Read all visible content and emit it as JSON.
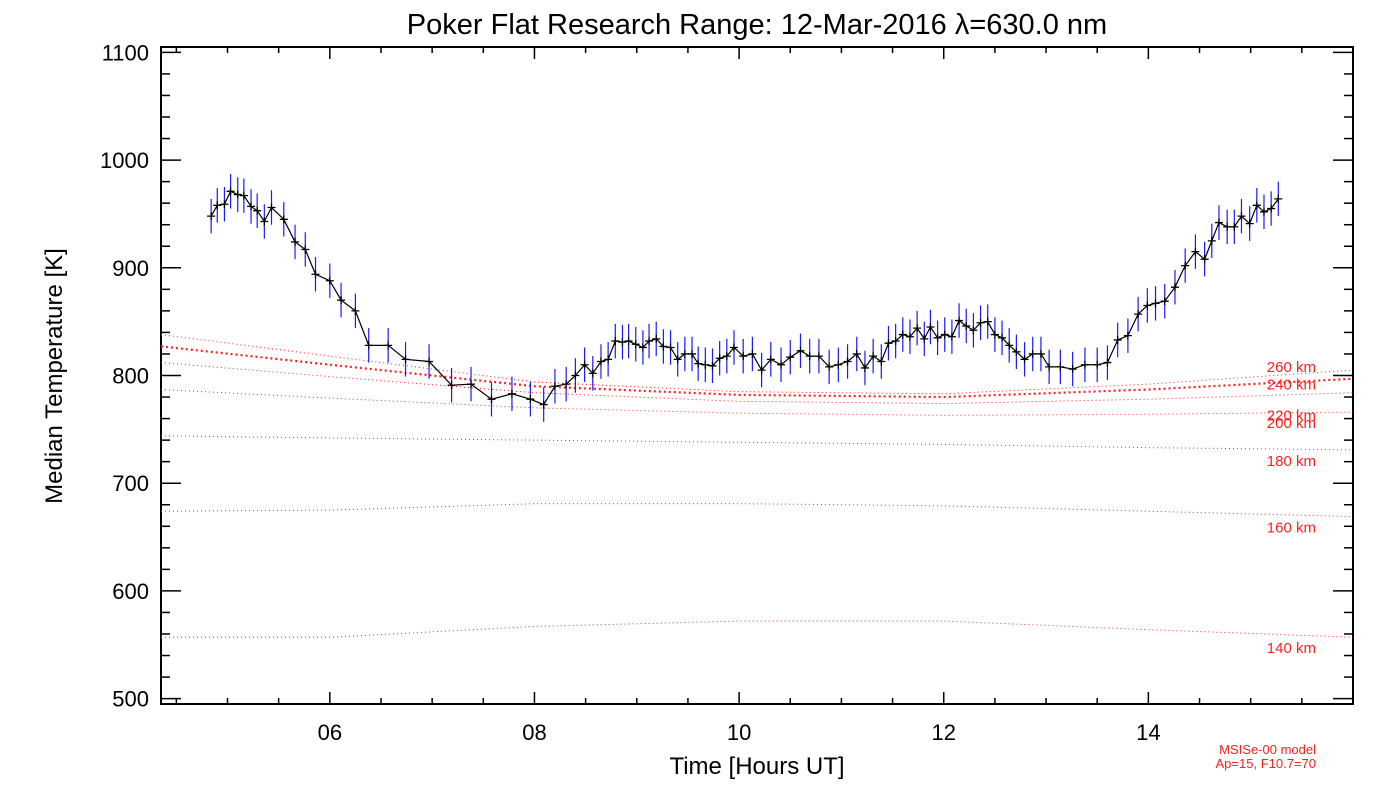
{
  "chart_data": {
    "type": "line",
    "title": "Poker Flat Research Range: 12-Mar-2016 λ=630.0 nm",
    "xlabel": "Time [Hours UT]",
    "ylabel": "Median Temperature [K]",
    "xlim": [
      4.35,
      16.0
    ],
    "ylim": [
      495,
      1105
    ],
    "xticks": [
      {
        "value": 6,
        "label": "06"
      },
      {
        "value": 8,
        "label": "08"
      },
      {
        "value": 10,
        "label": "10"
      },
      {
        "value": 12,
        "label": "12"
      },
      {
        "value": 14,
        "label": "14"
      }
    ],
    "yticks": [
      {
        "value": 500,
        "label": "500"
      },
      {
        "value": 600,
        "label": "600"
      },
      {
        "value": 700,
        "label": "700"
      },
      {
        "value": 800,
        "label": "800"
      },
      {
        "value": 900,
        "label": "900"
      },
      {
        "value": 1000,
        "label": "1000"
      },
      {
        "value": 1100,
        "label": "1100"
      }
    ],
    "grid": false,
    "colors": {
      "data_line": "#000000",
      "error_bars": "#1a1aff",
      "model": "#ff2020"
    },
    "series": [
      {
        "x": [
          4.84,
          4.9,
          4.97,
          5.03,
          5.1,
          5.16,
          5.23,
          5.29,
          5.36,
          5.43,
          5.55,
          5.66,
          5.76,
          5.86,
          6.0,
          6.11,
          6.25,
          6.38,
          6.57,
          6.74,
          6.97,
          7.19,
          7.38,
          7.58,
          7.78,
          7.96,
          8.09,
          8.2,
          8.31,
          8.4,
          8.49,
          8.57,
          8.65,
          8.72,
          8.79,
          8.86,
          8.92,
          8.99,
          9.06,
          9.12,
          9.19,
          9.26,
          9.33,
          9.4,
          9.47,
          9.54,
          9.6,
          9.67,
          9.74,
          9.81,
          9.88,
          9.95,
          10.04,
          10.13,
          10.22,
          10.31,
          10.41,
          10.5,
          10.6,
          10.69,
          10.78,
          10.88,
          10.97,
          11.06,
          11.15,
          11.23,
          11.31,
          11.39,
          11.46,
          11.53,
          11.6,
          11.67,
          11.74,
          11.81,
          11.87,
          11.94,
          12.01,
          12.08,
          12.15,
          12.22,
          12.29,
          12.36,
          12.43,
          12.5,
          12.57,
          12.64,
          12.71,
          12.79,
          12.87,
          12.95,
          13.03,
          13.14,
          13.26,
          13.38,
          13.5,
          13.6,
          13.7,
          13.8,
          13.9,
          13.99,
          14.07,
          14.16,
          14.26,
          14.36,
          14.46,
          14.55,
          14.62,
          14.69,
          14.77,
          14.84,
          14.91,
          14.99,
          15.06,
          15.13,
          15.2,
          15.27
        ],
        "values": [
          948,
          958,
          959,
          971,
          968,
          967,
          957,
          953,
          943,
          956,
          945,
          924,
          917,
          894,
          888,
          870,
          860,
          828,
          828,
          815,
          813,
          791,
          792,
          778,
          783,
          778,
          773,
          790,
          792,
          800,
          810,
          802,
          813,
          815,
          832,
          831,
          832,
          829,
          826,
          832,
          834,
          827,
          826,
          815,
          820,
          820,
          811,
          810,
          809,
          816,
          818,
          826,
          818,
          820,
          805,
          815,
          810,
          817,
          823,
          818,
          818,
          808,
          810,
          813,
          820,
          807,
          818,
          813,
          830,
          832,
          838,
          836,
          844,
          834,
          845,
          835,
          838,
          836,
          851,
          846,
          842,
          849,
          850,
          838,
          835,
          828,
          822,
          815,
          820,
          820,
          808,
          808,
          806,
          810,
          810,
          812,
          833,
          837,
          857,
          865,
          867,
          869,
          882,
          902,
          915,
          908,
          925,
          942,
          938,
          938,
          948,
          941,
          958,
          952,
          955,
          964
        ]
      }
    ],
    "model_curves": [
      {
        "label": "140 km",
        "x": [
          4.35,
          6.0,
          8.0,
          10.0,
          12.0,
          14.0,
          16.0
        ],
        "values": [
          557,
          557,
          567,
          572,
          572,
          564,
          557
        ]
      },
      {
        "label": "160 km",
        "x": [
          4.35,
          6.0,
          8.0,
          10.0,
          12.0,
          14.0,
          16.0
        ],
        "values": [
          674,
          675,
          681,
          681,
          679,
          674,
          669
        ]
      },
      {
        "label": "180 km",
        "x": [
          4.35,
          6.0,
          8.0,
          10.0,
          12.0,
          14.0,
          16.0
        ],
        "values": [
          744,
          742,
          740,
          738,
          736,
          733,
          731
        ]
      },
      {
        "label": "200 km",
        "x": [
          4.35,
          6.0,
          8.0,
          10.0,
          12.0,
          14.0,
          16.0
        ],
        "values": [
          787,
          779,
          770,
          765,
          763,
          764,
          766
        ]
      },
      {
        "label": "220 km",
        "x": [
          4.35,
          6.0,
          8.0,
          10.0,
          12.0,
          14.0,
          16.0
        ],
        "values": [
          812,
          799,
          784,
          776,
          774,
          778,
          784
        ]
      },
      {
        "label": "240 km",
        "x": [
          4.35,
          6.0,
          8.0,
          10.0,
          12.0,
          14.0,
          16.0
        ],
        "values": [
          827,
          810,
          790,
          782,
          780,
          787,
          797
        ]
      },
      {
        "label": "260 km",
        "x": [
          4.35,
          6.0,
          8.0,
          10.0,
          12.0,
          14.0,
          16.0
        ],
        "values": [
          838,
          818,
          794,
          785,
          783,
          792,
          805
        ]
      }
    ],
    "footnote_lines": [
      "MSISe-00 model",
      "Ap=15, F10.7=70"
    ]
  }
}
